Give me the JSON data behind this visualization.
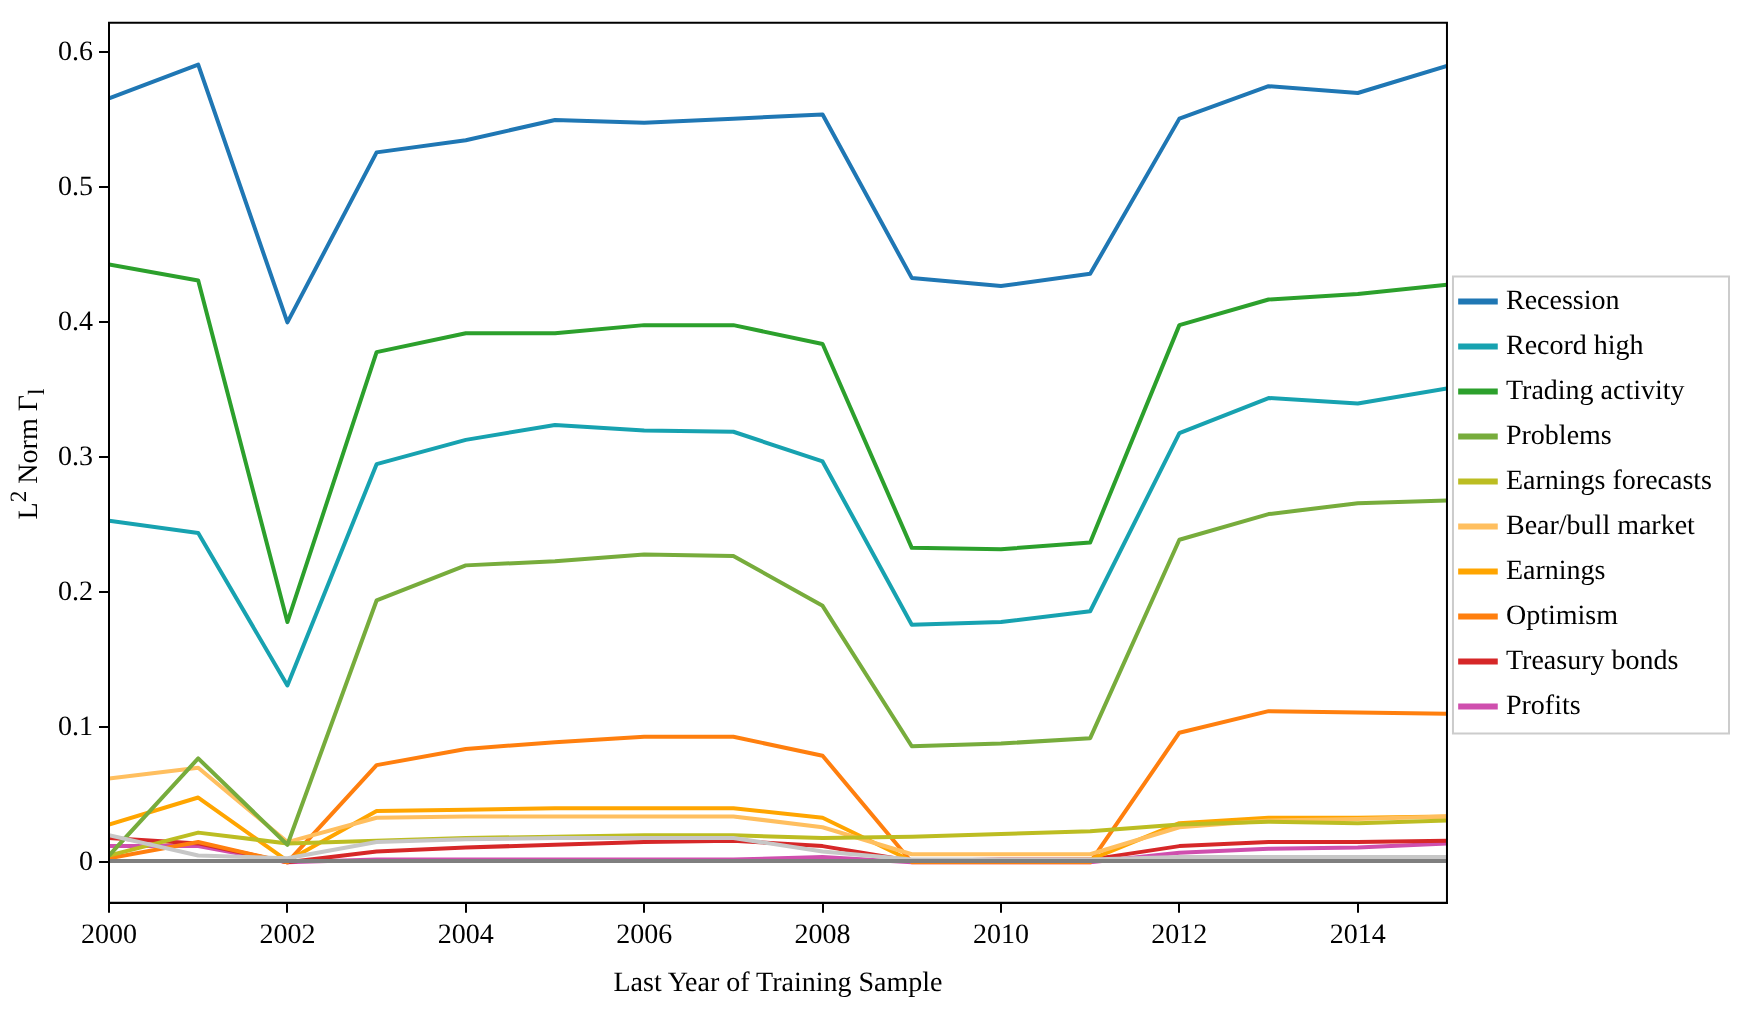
{
  "chart_data": {
    "type": "line",
    "xlabel": "Last Year of Training Sample",
    "ylabel": "L$^{2}$ Norm Γ$_{l}$",
    "x": [
      2000,
      2001,
      2002,
      2003,
      2004,
      2005,
      2006,
      2007,
      2008,
      2009,
      2010,
      2011,
      2012,
      2013,
      2014,
      2015
    ],
    "xlim": [
      2000,
      2015
    ],
    "xticks": [
      2000,
      2002,
      2004,
      2006,
      2008,
      2010,
      2012,
      2014
    ],
    "ylim": [
      -0.03,
      0.622
    ],
    "yticks": [
      0,
      0.1,
      0.2,
      0.3,
      0.4,
      0.5,
      0.6
    ],
    "grid": false,
    "legend": "right",
    "marker": "none",
    "line_style": "solid",
    "series": [
      {
        "color": "#7f7f7f",
        "values": [
          0.001,
          0.001,
          0.001,
          0.001,
          0.001,
          0.001,
          0.001,
          0.001,
          0.001,
          0.001,
          0.001,
          0.001,
          0.001,
          0.001,
          0.001,
          0.001
        ]
      },
      {
        "color": "#c7c7c7",
        "values": [
          0.02,
          0.005,
          0.003,
          0.015,
          0.017,
          0.018,
          0.018,
          0.018,
          0.008,
          0.002,
          0.002,
          0.002,
          0.004,
          0.004,
          0.004,
          0.004
        ]
      },
      {
        "name": "Recession",
        "color": "#1f77b4",
        "values": [
          0.566,
          0.591,
          0.4,
          0.526,
          0.535,
          0.55,
          0.548,
          0.551,
          0.554,
          0.433,
          0.427,
          0.436,
          0.551,
          0.575,
          0.57,
          0.59
        ]
      },
      {
        "name": "Record high",
        "color": "#17a2b0",
        "values": [
          0.253,
          0.244,
          0.131,
          0.295,
          0.313,
          0.324,
          0.32,
          0.319,
          0.297,
          0.176,
          0.178,
          0.186,
          0.318,
          0.344,
          0.34,
          0.351
        ]
      },
      {
        "name": "Trading activity",
        "color": "#2ca02c",
        "values": [
          0.443,
          0.431,
          0.178,
          0.378,
          0.392,
          0.392,
          0.398,
          0.398,
          0.384,
          0.233,
          0.232,
          0.237,
          0.398,
          0.417,
          0.421,
          0.428
        ]
      },
      {
        "name": "Problems",
        "color": "#77ac3c",
        "values": [
          0.005,
          0.077,
          0.013,
          0.194,
          0.22,
          0.223,
          0.228,
          0.227,
          0.19,
          0.086,
          0.088,
          0.092,
          0.239,
          0.258,
          0.266,
          0.268
        ]
      },
      {
        "name": "Earnings forecasts",
        "color": "#bcbd22",
        "values": [
          0.005,
          0.022,
          0.014,
          0.016,
          0.018,
          0.019,
          0.02,
          0.02,
          0.018,
          0.019,
          0.021,
          0.023,
          0.028,
          0.03,
          0.029,
          0.031
        ]
      },
      {
        "name": "Bear/bull market",
        "color": "#ffbf5f",
        "values": [
          0.062,
          0.07,
          0.015,
          0.033,
          0.034,
          0.034,
          0.034,
          0.034,
          0.026,
          0.006,
          0.006,
          0.006,
          0.026,
          0.031,
          0.032,
          0.034
        ]
      },
      {
        "name": "Earnings",
        "color": "#ffa500",
        "values": [
          0.028,
          0.048,
          0.001,
          0.038,
          0.039,
          0.04,
          0.04,
          0.04,
          0.033,
          0.001,
          0.001,
          0.002,
          0.029,
          0.033,
          0.033,
          0.034
        ]
      },
      {
        "name": "Optimism",
        "color": "#ff7f0e",
        "values": [
          0.003,
          0.015,
          0.0,
          0.072,
          0.084,
          0.089,
          0.093,
          0.093,
          0.079,
          0.0,
          0.0,
          0.0,
          0.096,
          0.112,
          0.111,
          0.11
        ]
      },
      {
        "name": "Treasury bonds",
        "color": "#d62728",
        "values": [
          0.018,
          0.014,
          0.0,
          0.008,
          0.011,
          0.013,
          0.015,
          0.016,
          0.012,
          0.001,
          0.002,
          0.002,
          0.012,
          0.015,
          0.015,
          0.016
        ]
      },
      {
        "name": "Profits",
        "color": "#cf4fae",
        "values": [
          0.012,
          0.012,
          0.0,
          0.002,
          0.002,
          0.002,
          0.002,
          0.002,
          0.004,
          0.0,
          0.0,
          0.0,
          0.007,
          0.01,
          0.011,
          0.014
        ]
      }
    ]
  }
}
